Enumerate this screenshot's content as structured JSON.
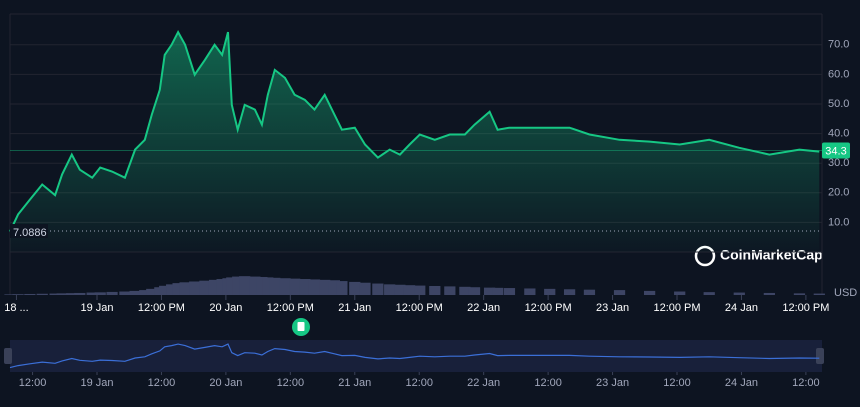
{
  "chart_data": {
    "type": "line",
    "currency": "USD",
    "brand": "CoinMarketCap",
    "x": [
      -16.2,
      -14.7,
      -12.5,
      -10.2,
      -7.8,
      -6.5,
      -4.7,
      -3.2,
      -0.9,
      0.6,
      2.8,
      5.2,
      7.1,
      8.9,
      10.2,
      11.7,
      12.6,
      13.9,
      15.1,
      16.4,
      18.2,
      20.1,
      21.9,
      23.3,
      24.4,
      25.1,
      26.2,
      27.5,
      29.4,
      30.7,
      31.8,
      33.1,
      35.0,
      36.8,
      38.7,
      40.5,
      42.4,
      44.2,
      45.6,
      48.0,
      49.9,
      52.3,
      54.5,
      56.4,
      58.2,
      60.1,
      62.9,
      65.7,
      68.5,
      70.3,
      73.1,
      74.6,
      76.8,
      80.6,
      84.3,
      88.0,
      91.7,
      97.3,
      102.9,
      108.5,
      114.0,
      119.6,
      125.2,
      130.8,
      134.5
    ],
    "series": [
      {
        "name": "Price",
        "color": "#16c784",
        "values": [
          6.9,
          12.7,
          17.7,
          22.8,
          19.2,
          26.2,
          32.9,
          27.8,
          25.1,
          28.5,
          27.2,
          25.1,
          34.6,
          37.9,
          46.4,
          54.8,
          66.6,
          70.0,
          74.3,
          70.0,
          59.9,
          64.9,
          70.0,
          66.6,
          74.3,
          49.7,
          41.3,
          49.7,
          48.1,
          43.0,
          53.1,
          61.5,
          58.8,
          53.1,
          51.4,
          48.1,
          53.1,
          46.4,
          41.3,
          42.0,
          36.3,
          31.9,
          34.6,
          32.9,
          36.3,
          39.7,
          37.9,
          39.7,
          39.7,
          43.0,
          47.4,
          41.3,
          42.0,
          42.0,
          42.0,
          42.0,
          39.7,
          37.9,
          37.3,
          36.3,
          37.9,
          35.2,
          32.9,
          34.6,
          33.9
        ]
      },
      {
        "name": "Volume",
        "color": "#3d4565",
        "axis": "y2",
        "values": [
          3,
          4,
          5,
          6,
          7,
          8,
          9,
          10,
          12,
          13,
          15,
          17,
          20,
          24,
          30,
          38,
          45,
          52,
          58,
          62,
          66,
          70,
          74,
          78,
          82,
          86,
          90,
          92,
          90,
          88,
          86,
          84,
          82,
          80,
          78,
          76,
          74,
          72,
          68,
          64,
          60,
          56,
          52,
          50,
          48,
          46,
          44,
          42,
          40,
          38,
          36,
          35,
          34,
          32,
          30,
          28,
          26,
          24,
          20,
          17,
          14,
          12,
          10,
          8,
          7
        ]
      }
    ],
    "start_price": 7.0886,
    "last_price": 34.3,
    "xlim": [
      -16.2,
      135
    ],
    "ylim": [
      0,
      80.4
    ],
    "y2lim": [
      0,
      210
    ],
    "yticks": [
      {
        "value": 10,
        "label": "10.0"
      },
      {
        "value": 20,
        "label": "20.0"
      },
      {
        "value": 30,
        "label": "30.0"
      },
      {
        "value": 40,
        "label": "40.0"
      },
      {
        "value": 50,
        "label": "50.0"
      },
      {
        "value": 60,
        "label": "60.0"
      },
      {
        "value": 70,
        "label": "70.0"
      }
    ],
    "xticks": [
      {
        "value": -15,
        "label": "18 ..."
      },
      {
        "value": 0,
        "label": "19 Jan"
      },
      {
        "value": 12,
        "label": "12:00 PM"
      },
      {
        "value": 24,
        "label": "20 Jan"
      },
      {
        "value": 36,
        "label": "12:00 PM"
      },
      {
        "value": 48,
        "label": "21 Jan"
      },
      {
        "value": 60,
        "label": "12:00 PM"
      },
      {
        "value": 72,
        "label": "22 Jan"
      },
      {
        "value": 84,
        "label": "12:00 PM"
      },
      {
        "value": 96,
        "label": "23 Jan"
      },
      {
        "value": 108,
        "label": "12:00 PM"
      },
      {
        "value": 120,
        "label": "24 Jan"
      },
      {
        "value": 132,
        "label": "12:00 PM"
      }
    ],
    "nav_xticks": [
      {
        "value": -12,
        "label": "12:00"
      },
      {
        "value": 0,
        "label": "19 Jan"
      },
      {
        "value": 12,
        "label": "12:00"
      },
      {
        "value": 24,
        "label": "20 Jan"
      },
      {
        "value": 36,
        "label": "12:00"
      },
      {
        "value": 48,
        "label": "21 Jan"
      },
      {
        "value": 60,
        "label": "12:00"
      },
      {
        "value": 72,
        "label": "22 Jan"
      },
      {
        "value": 84,
        "label": "12:00"
      },
      {
        "value": 96,
        "label": "23 Jan"
      },
      {
        "value": 108,
        "label": "12:00"
      },
      {
        "value": 120,
        "label": "24 Jan"
      },
      {
        "value": 132,
        "label": "12:00"
      }
    ],
    "grid": true
  }
}
